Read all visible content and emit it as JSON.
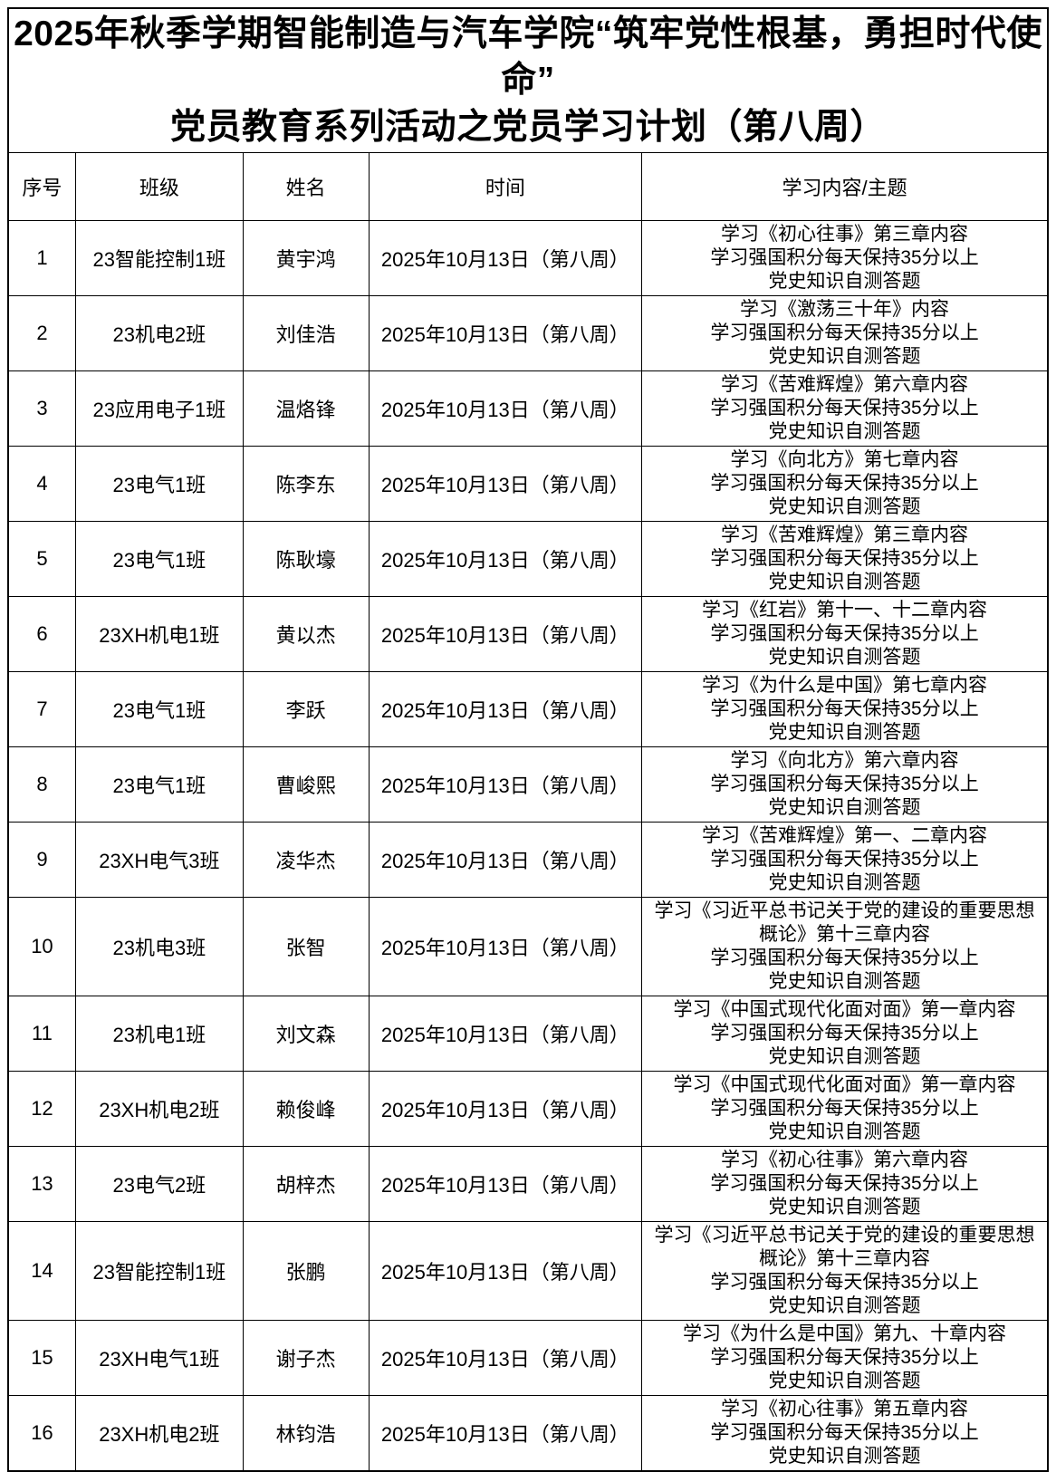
{
  "title": {
    "line1": "2025年秋季学期智能制造与汽车学院“筑牢党性根基，勇担时代使命”",
    "line2": "党员教育系列活动之党员学习计划（第八周）"
  },
  "table": {
    "headers": [
      "序号",
      "班级",
      "姓名",
      "时间",
      "学习内容/主题"
    ],
    "rows": [
      {
        "no": "1",
        "class": "23智能控制1班",
        "name": "黄宇鸿",
        "time": "2025年10月13日（第八周）",
        "content": [
          "学习《初心往事》第三章内容",
          "学习强国积分每天保持35分以上",
          "党史知识自测答题"
        ]
      },
      {
        "no": "2",
        "class": "23机电2班",
        "name": "刘佳浩",
        "time": "2025年10月13日（第八周）",
        "content": [
          "学习《激荡三十年》内容",
          "学习强国积分每天保持35分以上",
          "党史知识自测答题"
        ]
      },
      {
        "no": "3",
        "class": "23应用电子1班",
        "name": "温烙锋",
        "time": "2025年10月13日（第八周）",
        "content": [
          "学习《苦难辉煌》第六章内容",
          "学习强国积分每天保持35分以上",
          "党史知识自测答题"
        ]
      },
      {
        "no": "4",
        "class": "23电气1班",
        "name": "陈李东",
        "time": "2025年10月13日（第八周）",
        "content": [
          "学习《向北方》第七章内容",
          "学习强国积分每天保持35分以上",
          "党史知识自测答题"
        ]
      },
      {
        "no": "5",
        "class": "23电气1班",
        "name": "陈耿壕",
        "time": "2025年10月13日（第八周）",
        "content": [
          "学习《苦难辉煌》第三章内容",
          "学习强国积分每天保持35分以上",
          "党史知识自测答题"
        ]
      },
      {
        "no": "6",
        "class": "23XH机电1班",
        "name": "黄以杰",
        "time": "2025年10月13日（第八周）",
        "content": [
          "学习《红岩》第十一、十二章内容",
          "学习强国积分每天保持35分以上",
          "党史知识自测答题"
        ]
      },
      {
        "no": "7",
        "class": "23电气1班",
        "name": "李跃",
        "time": "2025年10月13日（第八周）",
        "content": [
          "学习《为什么是中国》第七章内容",
          "学习强国积分每天保持35分以上",
          "党史知识自测答题"
        ]
      },
      {
        "no": "8",
        "class": "23电气1班",
        "name": "曹峻熙",
        "time": "2025年10月13日（第八周）",
        "content": [
          "学习《向北方》第六章内容",
          "学习强国积分每天保持35分以上",
          "党史知识自测答题"
        ]
      },
      {
        "no": "9",
        "class": "23XH电气3班",
        "name": "凌华杰",
        "time": "2025年10月13日（第八周）",
        "content": [
          "学习《苦难辉煌》第一、二章内容",
          "学习强国积分每天保持35分以上",
          "党史知识自测答题"
        ]
      },
      {
        "no": "10",
        "class": "23机电3班",
        "name": "张智",
        "time": "2025年10月13日（第八周）",
        "content": [
          "学习《习近平总书记关于党的建设的重要思想",
          "概论》第十三章内容",
          "学习强国积分每天保持35分以上",
          "党史知识自测答题"
        ]
      },
      {
        "no": "11",
        "class": "23机电1班",
        "name": "刘文森",
        "time": "2025年10月13日（第八周）",
        "content": [
          "学习《中国式现代化面对面》第一章内容",
          "学习强国积分每天保持35分以上",
          "党史知识自测答题"
        ]
      },
      {
        "no": "12",
        "class": "23XH机电2班",
        "name": "赖俊峰",
        "time": "2025年10月13日（第八周）",
        "content": [
          "学习《中国式现代化面对面》第一章内容",
          "学习强国积分每天保持35分以上",
          "党史知识自测答题"
        ]
      },
      {
        "no": "13",
        "class": "23电气2班",
        "name": "胡梓杰",
        "time": "2025年10月13日（第八周）",
        "content": [
          "学习《初心往事》第六章内容",
          "学习强国积分每天保持35分以上",
          "党史知识自测答题"
        ]
      },
      {
        "no": "14",
        "class": "23智能控制1班",
        "name": "张鹏",
        "time": "2025年10月13日（第八周）",
        "content": [
          "学习《习近平总书记关于党的建设的重要思想",
          "概论》第十三章内容",
          "学习强国积分每天保持35分以上",
          "党史知识自测答题"
        ]
      },
      {
        "no": "15",
        "class": "23XH电气1班",
        "name": "谢子杰",
        "time": "2025年10月13日（第八周）",
        "content": [
          "学习《为什么是中国》第九、十章内容",
          "学习强国积分每天保持35分以上",
          "党史知识自测答题"
        ]
      },
      {
        "no": "16",
        "class": "23XH机电2班",
        "name": "林钧浩",
        "time": "2025年10月13日（第八周）",
        "content": [
          "学习《初心往事》第五章内容",
          "学习强国积分每天保持35分以上",
          "党史知识自测答题"
        ]
      }
    ]
  }
}
